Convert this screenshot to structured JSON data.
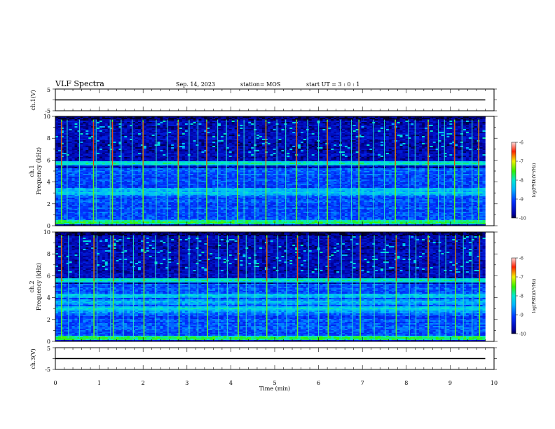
{
  "header": {
    "title": "VLF Spectra",
    "date": "Sep. 14, 2023",
    "station": "station= MOS",
    "start": "start  UT =  3 : 0  : 1"
  },
  "chart_data": [
    {
      "type": "line",
      "panel": "ch1-voltage",
      "ylabel": "ch.1(V)",
      "ylim": [
        -5,
        5
      ],
      "ytick_labels": [
        "5",
        "-5"
      ],
      "series": [
        {
          "x": [
            0,
            9.8
          ],
          "values": [
            0,
            0
          ]
        }
      ]
    },
    {
      "type": "heatmap",
      "panel": "ch1-spectrogram",
      "ylabel_top": "ch.1",
      "ylabel": "Frequency  (kHz)",
      "ylim": [
        0,
        10
      ],
      "ytick_labels": [
        "0",
        "2",
        "4",
        "6",
        "8",
        "10"
      ],
      "x_range_min": [
        0,
        9.8
      ],
      "colorbar": {
        "label": "log(PSD)(V²/Hz)",
        "range": [
          -10,
          -6
        ],
        "tick_labels": [
          "-6",
          "-7",
          "-8",
          "-9",
          "-10"
        ]
      },
      "bands_khz": [
        {
          "f": 5.7,
          "level": -7.9
        },
        {
          "f": 4.2,
          "level": -8.9
        },
        {
          "f": 3.3,
          "level": -8.3
        },
        {
          "f": 3.0,
          "level": -8.2
        },
        {
          "f": 2.8,
          "level": -8.6
        },
        {
          "f": 2.2,
          "level": -8.9
        },
        {
          "f": 1.2,
          "level": -9.0
        },
        {
          "f": 0.6,
          "level": -8.8
        },
        {
          "f": 0.3,
          "level": -7.6
        }
      ],
      "impulse_times_min": [
        0.14,
        0.27,
        0.55,
        0.87,
        0.93,
        1.25,
        1.3,
        1.5,
        1.75,
        2.0,
        2.3,
        2.55,
        2.8,
        3.05,
        3.25,
        3.45,
        3.7,
        3.9,
        4.15,
        4.3,
        4.55,
        4.8,
        5.05,
        5.25,
        5.5,
        5.75,
        6.0,
        6.2,
        6.5,
        6.75,
        6.92,
        7.25,
        7.5,
        7.75,
        8.05,
        8.2,
        8.5,
        8.73,
        8.87,
        9.1,
        9.27,
        9.5,
        9.65
      ]
    },
    {
      "type": "heatmap",
      "panel": "ch2-spectrogram",
      "ylabel_top": "ch.2",
      "ylabel": "Frequency  (kHz)",
      "ylim": [
        0,
        10
      ],
      "ytick_labels": [
        "0",
        "2",
        "4",
        "6",
        "8",
        "10"
      ],
      "x_range_min": [
        0,
        9.8
      ],
      "colorbar": {
        "label": "log(PSD)(V²/Hz)",
        "range": [
          -10,
          -6
        ],
        "tick_labels": [
          "-6",
          "-7",
          "-8",
          "-9",
          "-10"
        ]
      },
      "bands_khz": [
        {
          "f": 5.6,
          "level": -7.9
        },
        {
          "f": 4.2,
          "level": -8.2
        },
        {
          "f": 3.6,
          "level": -8.3
        },
        {
          "f": 3.0,
          "level": -8.1
        },
        {
          "f": 2.7,
          "level": -8.5
        },
        {
          "f": 2.0,
          "level": -8.9
        },
        {
          "f": 1.3,
          "level": -9.0
        },
        {
          "f": 0.5,
          "level": -8.8
        },
        {
          "f": 0.3,
          "level": -7.6
        }
      ],
      "impulse_times_min": [
        0.14,
        0.3,
        0.55,
        0.88,
        0.95,
        1.26,
        1.32,
        1.55,
        1.78,
        2.02,
        2.28,
        2.57,
        2.82,
        3.05,
        3.25,
        3.47,
        3.72,
        3.92,
        4.17,
        4.35,
        4.55,
        4.82,
        5.07,
        5.27,
        5.52,
        5.77,
        6.0,
        6.22,
        6.52,
        6.77,
        6.95,
        7.27,
        7.52,
        7.77,
        8.07,
        8.22,
        8.5,
        8.75,
        8.9,
        9.12,
        9.3,
        9.5,
        9.67
      ]
    },
    {
      "type": "line",
      "panel": "ch3-voltage",
      "ylabel": "ch.3(V)",
      "ylim": [
        -5,
        5
      ],
      "ytick_labels": [
        "5",
        "-5"
      ],
      "xlabel": "Time  (min)",
      "xlim": [
        0,
        10
      ],
      "xtick_labels": [
        "0",
        "1",
        "2",
        "3",
        "4",
        "5",
        "6",
        "7",
        "8",
        "9",
        "10"
      ],
      "series": [
        {
          "x": [
            0,
            9.8
          ],
          "values": [
            0,
            0
          ]
        }
      ]
    }
  ]
}
